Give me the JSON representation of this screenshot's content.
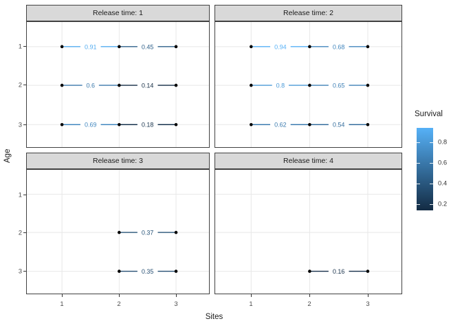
{
  "chart_data": {
    "type": "line",
    "title": "",
    "xlabel": "Sites",
    "ylabel": "Age",
    "x_ticks": [
      "1",
      "2",
      "3"
    ],
    "y_ticks": [
      "1",
      "2",
      "3"
    ],
    "y_axis_reversed": true,
    "facets": [
      {
        "label": "Release time: 1",
        "segments": [
          {
            "age": 1,
            "from_site": 1,
            "to_site": 2,
            "survival": 0.91,
            "label": "0.91"
          },
          {
            "age": 1,
            "from_site": 2,
            "to_site": 3,
            "survival": 0.45,
            "label": "0.45"
          },
          {
            "age": 2,
            "from_site": 1,
            "to_site": 2,
            "survival": 0.6,
            "label": "0.6"
          },
          {
            "age": 2,
            "from_site": 2,
            "to_site": 3,
            "survival": 0.14,
            "label": "0.14"
          },
          {
            "age": 3,
            "from_site": 1,
            "to_site": 2,
            "survival": 0.69,
            "label": "0.69"
          },
          {
            "age": 3,
            "from_site": 2,
            "to_site": 3,
            "survival": 0.18,
            "label": "0.18"
          }
        ]
      },
      {
        "label": "Release time: 2",
        "segments": [
          {
            "age": 1,
            "from_site": 1,
            "to_site": 2,
            "survival": 0.94,
            "label": "0.94"
          },
          {
            "age": 1,
            "from_site": 2,
            "to_site": 3,
            "survival": 0.68,
            "label": "0.68"
          },
          {
            "age": 2,
            "from_site": 1,
            "to_site": 2,
            "survival": 0.8,
            "label": "0.8"
          },
          {
            "age": 2,
            "from_site": 2,
            "to_site": 3,
            "survival": 0.65,
            "label": "0.65"
          },
          {
            "age": 3,
            "from_site": 1,
            "to_site": 2,
            "survival": 0.62,
            "label": "0.62"
          },
          {
            "age": 3,
            "from_site": 2,
            "to_site": 3,
            "survival": 0.54,
            "label": "0.54"
          }
        ]
      },
      {
        "label": "Release time: 3",
        "segments": [
          {
            "age": 2,
            "from_site": 2,
            "to_site": 3,
            "survival": 0.37,
            "label": "0.37"
          },
          {
            "age": 3,
            "from_site": 2,
            "to_site": 3,
            "survival": 0.35,
            "label": "0.35"
          }
        ]
      },
      {
        "label": "Release time: 4",
        "segments": [
          {
            "age": 3,
            "from_site": 2,
            "to_site": 3,
            "survival": 0.16,
            "label": "0.16"
          }
        ]
      }
    ],
    "legend": {
      "title": "Survival",
      "ticks": [
        {
          "value": 0.8,
          "label": "0.8"
        },
        {
          "value": 0.6,
          "label": "0.6"
        },
        {
          "value": 0.4,
          "label": "0.4"
        },
        {
          "value": 0.2,
          "label": "0.2"
        }
      ],
      "domain": [
        0.14,
        0.94
      ],
      "low_color": "#132B43",
      "high_color": "#56B1F7"
    },
    "style": {
      "strip_fill": "#D9D9D9",
      "panel_border": "#404040",
      "grid_color": "#E8E8E8",
      "tick_text_color": "#4D4D4D",
      "point_color": "#000000"
    }
  }
}
